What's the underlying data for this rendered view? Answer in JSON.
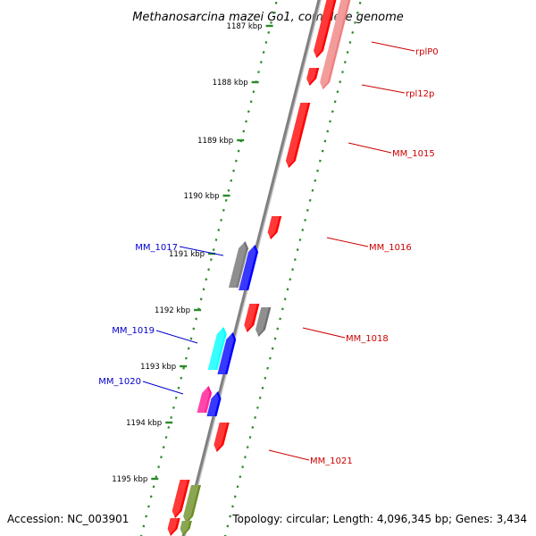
{
  "title": "Methanosarcina mazei Go1, complete genome",
  "accession": "Accession: NC_003901",
  "summary": "Topology: circular; Length: 4,096,345 bp; Genes: 3,434",
  "colors": {
    "backbone": "#808080",
    "ruler": "#2a8a2a",
    "forward_label": "#cc0000",
    "reverse_label": "#0000cc"
  },
  "ticks": [
    {
      "label": "1187 kbp"
    },
    {
      "label": "1188 kbp"
    },
    {
      "label": "1189 kbp"
    },
    {
      "label": "1190 kbp"
    },
    {
      "label": "1191 kbp"
    },
    {
      "label": "1192 kbp"
    },
    {
      "label": "1193 kbp"
    },
    {
      "label": "1194 kbp"
    },
    {
      "label": "1195 kbp"
    }
  ],
  "genes": [
    {
      "name": "rplP0",
      "strand": "forward"
    },
    {
      "name": "rpl12p",
      "strand": "forward"
    },
    {
      "name": "MM_1015",
      "strand": "forward"
    },
    {
      "name": "MM_1016",
      "strand": "forward"
    },
    {
      "name": "MM_1017",
      "strand": "reverse"
    },
    {
      "name": "MM_1018",
      "strand": "forward"
    },
    {
      "name": "MM_1019",
      "strand": "reverse"
    },
    {
      "name": "MM_1020",
      "strand": "reverse"
    },
    {
      "name": "MM_1021",
      "strand": "forward"
    }
  ]
}
